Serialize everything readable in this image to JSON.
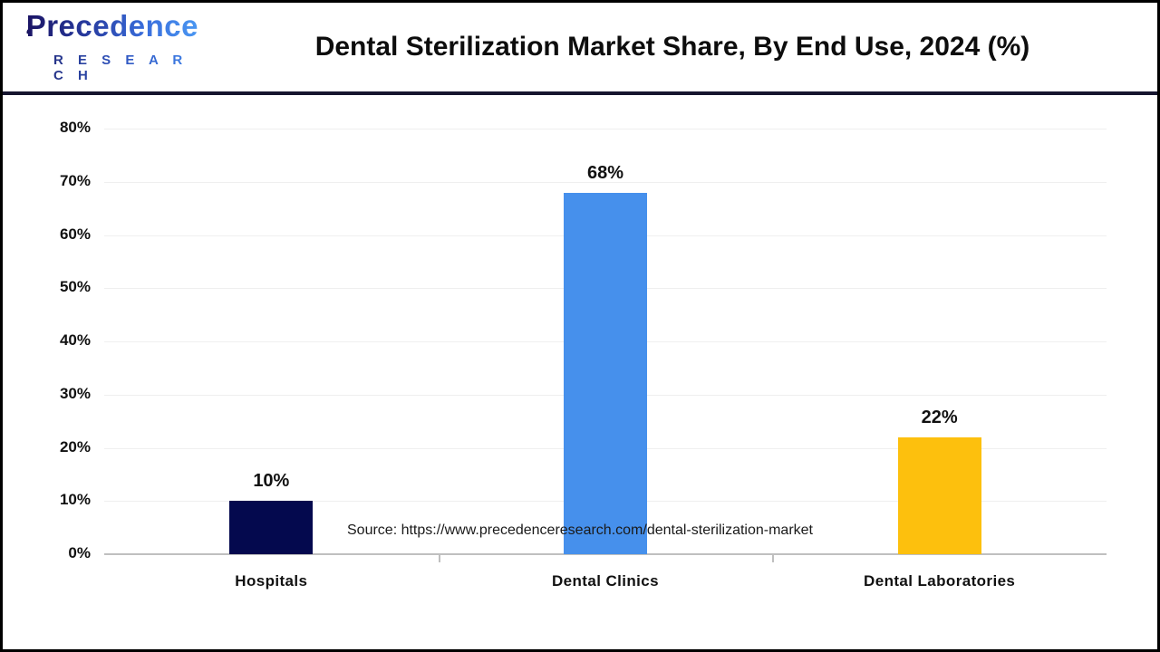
{
  "header": {
    "logo": {
      "brand": "Precedence",
      "sub": "R E S E A R C H"
    },
    "title": "Dental Sterilization Market Share, By End Use, 2024 (%)"
  },
  "chart_data": {
    "type": "bar",
    "title": "Dental Sterilization Market Share, By End Use, 2024 (%)",
    "categories": [
      "Hospitals",
      "Dental Clinics",
      "Dental Laboratories"
    ],
    "values": [
      10,
      68,
      22
    ],
    "value_labels": [
      "10%",
      "68%",
      "22%"
    ],
    "bar_colors": [
      "#04094e",
      "#4690ec",
      "#fdc00d"
    ],
    "xlabel": "",
    "ylabel": "",
    "ylim": [
      0,
      80
    ],
    "ytick_step": 10,
    "ytick_labels": [
      "0%",
      "10%",
      "20%",
      "30%",
      "40%",
      "50%",
      "60%",
      "70%",
      "80%"
    ],
    "grid": true,
    "legend": false
  },
  "footer": {
    "source": "Source: https://www.precedenceresearch.com/dental-sterilization-market"
  },
  "colors": {
    "divider": "#16152f",
    "axis": "#bfbfbf",
    "gridline": "#efefef",
    "label_text": "#111111",
    "title_text": "#0d0d0d"
  }
}
